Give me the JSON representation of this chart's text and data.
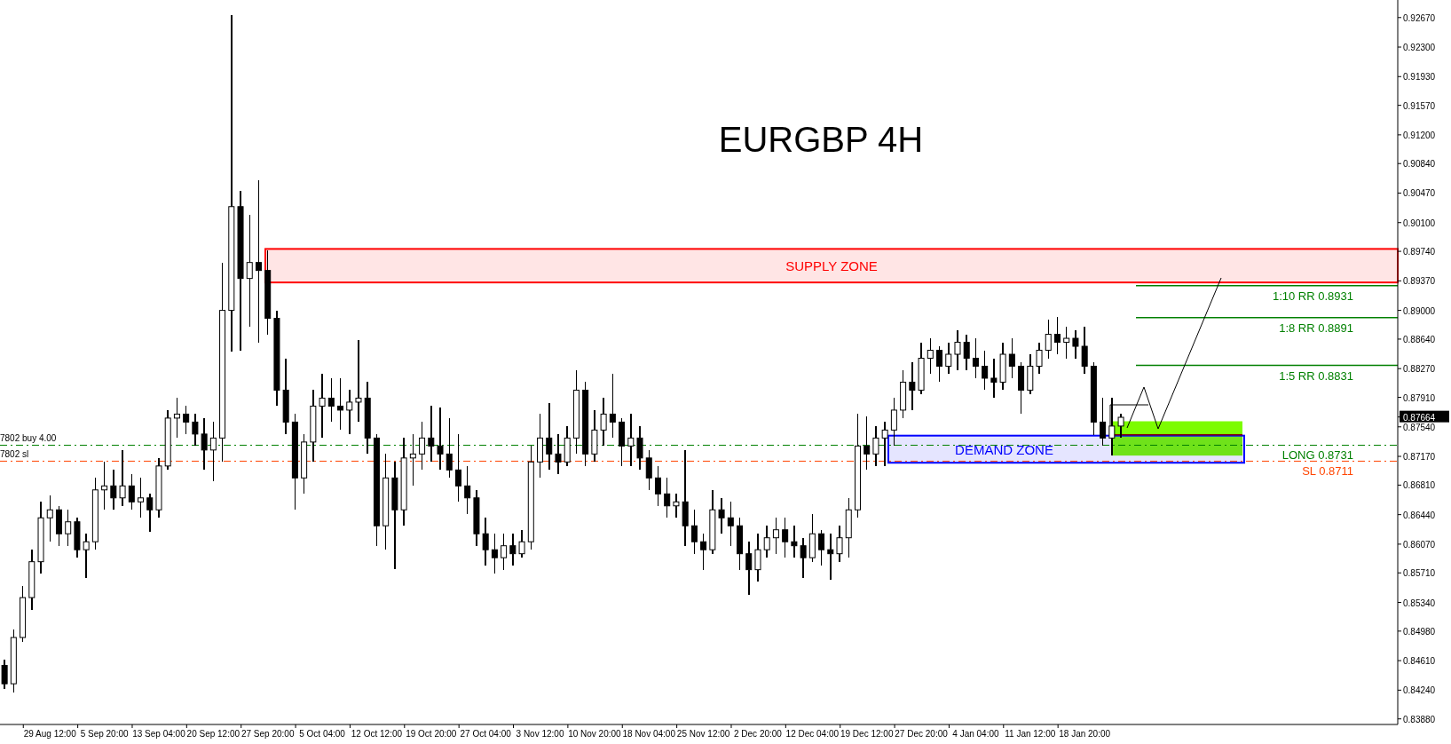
{
  "chart_data": {
    "type": "candlestick",
    "title": "EURGBP 4H",
    "color": "#000000",
    "categories": [
      null,
      null,
      null,
      null,
      null,
      "29 Aug 12:00",
      null,
      null,
      null,
      null,
      null,
      "5 Sep 20:00",
      null,
      null,
      null,
      null,
      null,
      "13 Sep 04:00",
      null,
      null,
      null,
      null,
      null,
      "20 Sep 12:00",
      null,
      null,
      null,
      null,
      null,
      "27 Sep 20:00",
      null,
      null,
      null,
      null,
      null,
      "5 Oct 04:00",
      null,
      null,
      null,
      null,
      null,
      "12 Oct 12:00",
      null,
      null,
      null,
      null,
      null,
      "19 Oct 20:00",
      null,
      null,
      null,
      null,
      null,
      "27 Oct 04:00",
      null,
      null,
      null,
      null,
      null,
      "3 Nov 12:00",
      null,
      null,
      null,
      null,
      null,
      "10 Nov 20:00",
      null,
      null,
      null,
      null,
      null,
      "18 Nov 04:00",
      null,
      null,
      null,
      null,
      null,
      "25 Nov 12:00",
      null,
      null,
      null,
      null,
      null,
      "2 Dec 20:00",
      null,
      null,
      null,
      null,
      null,
      "12 Dec 04:00",
      null,
      null,
      null,
      null,
      null,
      "19 Dec 12:00",
      null,
      null,
      null,
      null,
      null,
      "27 Dec 20:00",
      null,
      null,
      null,
      null,
      null,
      "4 Jan 04:00",
      null,
      null,
      null,
      null,
      null,
      "11 Jan 12:00",
      null,
      null,
      null,
      null,
      null,
      "18 Jan 20:00",
      null,
      null,
      null,
      null,
      null,
      null,
      null,
      null,
      null,
      null,
      null,
      null,
      null,
      null,
      null,
      null,
      null,
      null,
      null,
      null,
      null,
      null,
      null,
      null,
      null,
      null,
      null,
      null,
      null,
      null,
      null,
      null,
      null,
      null
    ],
    "ohlc": [
      [
        0.8455,
        0.8462,
        0.8425,
        0.8432
      ],
      [
        0.8432,
        0.85,
        0.8421,
        0.849
      ],
      [
        0.849,
        0.8555,
        0.8485,
        0.854
      ],
      [
        0.854,
        0.86,
        0.8525,
        0.8585
      ],
      [
        0.8585,
        0.866,
        0.857,
        0.864
      ],
      [
        0.864,
        0.8668,
        0.861,
        0.865
      ],
      [
        0.865,
        0.8655,
        0.8605,
        0.862
      ],
      [
        0.862,
        0.865,
        0.8605,
        0.8635
      ],
      [
        0.8635,
        0.864,
        0.859,
        0.86
      ],
      [
        0.86,
        0.862,
        0.8565,
        0.861
      ],
      [
        0.861,
        0.869,
        0.86,
        0.8675
      ],
      [
        0.8675,
        0.871,
        0.865,
        0.868
      ],
      [
        0.868,
        0.87,
        0.865,
        0.8665
      ],
      [
        0.8665,
        0.8725,
        0.8655,
        0.868
      ],
      [
        0.868,
        0.8695,
        0.865,
        0.866
      ],
      [
        0.866,
        0.869,
        0.864,
        0.8665
      ],
      [
        0.8665,
        0.867,
        0.8622,
        0.865
      ],
      [
        0.865,
        0.8715,
        0.864,
        0.8705
      ],
      [
        0.8705,
        0.8775,
        0.87,
        0.8765
      ],
      [
        0.8765,
        0.879,
        0.874,
        0.877
      ],
      [
        0.877,
        0.878,
        0.8745,
        0.876
      ],
      [
        0.876,
        0.877,
        0.873,
        0.8745
      ],
      [
        0.8745,
        0.8765,
        0.87,
        0.8725
      ],
      [
        0.8725,
        0.876,
        0.8686,
        0.874
      ],
      [
        0.874,
        0.896,
        0.871,
        0.89
      ],
      [
        0.89,
        0.927,
        0.8848,
        0.903
      ],
      [
        0.903,
        0.905,
        0.885,
        0.894
      ],
      [
        0.894,
        0.902,
        0.888,
        0.896
      ],
      [
        0.896,
        0.9063,
        0.886,
        0.895
      ],
      [
        0.895,
        0.8975,
        0.887,
        0.889
      ],
      [
        0.889,
        0.89,
        0.878,
        0.88
      ],
      [
        0.88,
        0.884,
        0.8745,
        0.876
      ],
      [
        0.876,
        0.877,
        0.865,
        0.869
      ],
      [
        0.869,
        0.8745,
        0.867,
        0.8735
      ],
      [
        0.8735,
        0.88,
        0.871,
        0.878
      ],
      [
        0.878,
        0.882,
        0.874,
        0.879
      ],
      [
        0.879,
        0.8815,
        0.876,
        0.878
      ],
      [
        0.878,
        0.8815,
        0.875,
        0.8775
      ],
      [
        0.8775,
        0.88,
        0.8745,
        0.8785
      ],
      [
        0.8785,
        0.8863,
        0.876,
        0.879
      ],
      [
        0.879,
        0.881,
        0.872,
        0.874
      ],
      [
        0.874,
        0.8745,
        0.8605,
        0.863
      ],
      [
        0.863,
        0.872,
        0.86,
        0.869
      ],
      [
        0.869,
        0.871,
        0.8576,
        0.865
      ],
      [
        0.865,
        0.874,
        0.863,
        0.8715
      ],
      [
        0.8715,
        0.8745,
        0.868,
        0.872
      ],
      [
        0.872,
        0.876,
        0.87,
        0.874
      ],
      [
        0.874,
        0.878,
        0.871,
        0.873
      ],
      [
        0.873,
        0.8778,
        0.87,
        0.872
      ],
      [
        0.872,
        0.8765,
        0.869,
        0.87
      ],
      [
        0.87,
        0.8745,
        0.866,
        0.868
      ],
      [
        0.868,
        0.8705,
        0.8645,
        0.8665
      ],
      [
        0.8665,
        0.8675,
        0.8605,
        0.862
      ],
      [
        0.862,
        0.864,
        0.858,
        0.86
      ],
      [
        0.86,
        0.862,
        0.857,
        0.859
      ],
      [
        0.859,
        0.862,
        0.8575,
        0.8605
      ],
      [
        0.8605,
        0.862,
        0.858,
        0.8595
      ],
      [
        0.8595,
        0.8625,
        0.859,
        0.861
      ],
      [
        0.861,
        0.873,
        0.86,
        0.871
      ],
      [
        0.871,
        0.877,
        0.869,
        0.874
      ],
      [
        0.874,
        0.8784,
        0.87,
        0.872
      ],
      [
        0.872,
        0.8745,
        0.8695,
        0.871
      ],
      [
        0.871,
        0.8755,
        0.8705,
        0.874
      ],
      [
        0.874,
        0.8825,
        0.872,
        0.88
      ],
      [
        0.88,
        0.881,
        0.8705,
        0.872
      ],
      [
        0.872,
        0.8775,
        0.871,
        0.875
      ],
      [
        0.875,
        0.879,
        0.873,
        0.877
      ],
      [
        0.877,
        0.882,
        0.874,
        0.876
      ],
      [
        0.876,
        0.8765,
        0.8705,
        0.873
      ],
      [
        0.873,
        0.877,
        0.8705,
        0.874
      ],
      [
        0.874,
        0.8755,
        0.87,
        0.8715
      ],
      [
        0.8715,
        0.8725,
        0.8675,
        0.869
      ],
      [
        0.869,
        0.8705,
        0.8655,
        0.867
      ],
      [
        0.867,
        0.869,
        0.864,
        0.8655
      ],
      [
        0.8655,
        0.867,
        0.864,
        0.866
      ],
      [
        0.866,
        0.8725,
        0.8605,
        0.863
      ],
      [
        0.863,
        0.865,
        0.8595,
        0.861
      ],
      [
        0.861,
        0.862,
        0.8575,
        0.86
      ],
      [
        0.86,
        0.8675,
        0.8595,
        0.865
      ],
      [
        0.865,
        0.8665,
        0.862,
        0.864
      ],
      [
        0.864,
        0.866,
        0.8605,
        0.863
      ],
      [
        0.863,
        0.864,
        0.8575,
        0.8595
      ],
      [
        0.8595,
        0.861,
        0.8543,
        0.8575
      ],
      [
        0.8575,
        0.862,
        0.856,
        0.86
      ],
      [
        0.86,
        0.863,
        0.859,
        0.8615
      ],
      [
        0.8615,
        0.864,
        0.8595,
        0.8625
      ],
      [
        0.8625,
        0.864,
        0.859,
        0.861
      ],
      [
        0.861,
        0.863,
        0.859,
        0.8605
      ],
      [
        0.8605,
        0.8615,
        0.8565,
        0.859
      ],
      [
        0.859,
        0.8645,
        0.8585,
        0.862
      ],
      [
        0.862,
        0.8625,
        0.858,
        0.86
      ],
      [
        0.86,
        0.862,
        0.8562,
        0.8595
      ],
      [
        0.8595,
        0.863,
        0.8585,
        0.8615
      ],
      [
        0.8615,
        0.8665,
        0.859,
        0.865
      ],
      [
        0.865,
        0.877,
        0.864,
        0.873
      ],
      [
        0.873,
        0.8767,
        0.87,
        0.872
      ],
      [
        0.872,
        0.8755,
        0.8705,
        0.874
      ],
      [
        0.874,
        0.876,
        0.8705,
        0.875
      ],
      [
        0.875,
        0.879,
        0.873,
        0.8775
      ],
      [
        0.8775,
        0.8825,
        0.8765,
        0.881
      ],
      [
        0.881,
        0.8835,
        0.8775,
        0.88
      ],
      [
        0.88,
        0.886,
        0.8795,
        0.884
      ],
      [
        0.884,
        0.8865,
        0.882,
        0.885
      ],
      [
        0.885,
        0.8855,
        0.881,
        0.883
      ],
      [
        0.883,
        0.886,
        0.882,
        0.8845
      ],
      [
        0.8845,
        0.8875,
        0.8825,
        0.886
      ],
      [
        0.886,
        0.887,
        0.8825,
        0.884
      ],
      [
        0.884,
        0.8865,
        0.8815,
        0.883
      ],
      [
        0.883,
        0.885,
        0.88,
        0.8815
      ],
      [
        0.8815,
        0.884,
        0.879,
        0.881
      ],
      [
        0.881,
        0.886,
        0.88,
        0.8845
      ],
      [
        0.8845,
        0.8865,
        0.8815,
        0.883
      ],
      [
        0.883,
        0.8835,
        0.877,
        0.88
      ],
      [
        0.88,
        0.8845,
        0.8795,
        0.883
      ],
      [
        0.883,
        0.886,
        0.882,
        0.885
      ],
      [
        0.885,
        0.8888,
        0.884,
        0.887
      ],
      [
        0.887,
        0.8892,
        0.8845,
        0.886
      ],
      [
        0.886,
        0.888,
        0.884,
        0.8865
      ],
      [
        0.8865,
        0.8875,
        0.884,
        0.8855
      ],
      [
        0.8855,
        0.888,
        0.882,
        0.883
      ],
      [
        0.883,
        0.8835,
        0.8744,
        0.876
      ],
      [
        0.876,
        0.879,
        0.873,
        0.874
      ],
      [
        0.874,
        0.879,
        0.8718,
        0.8755
      ],
      [
        0.8755,
        0.877,
        0.874,
        0.8766
      ],
      null,
      null,
      null,
      null,
      null,
      null,
      null,
      null,
      null,
      null,
      null,
      null,
      null,
      null,
      null,
      null,
      null,
      null,
      null,
      null,
      null,
      null,
      null,
      null,
      null,
      null,
      null,
      null,
      null,
      null
    ],
    "ylim": [
      0.8381,
      0.9289
    ],
    "yticks": [
      {
        "value": 0.9267,
        "label": "0.92670"
      },
      {
        "value": 0.923,
        "label": "0.92300"
      },
      {
        "value": 0.9193,
        "label": "0.91930"
      },
      {
        "value": 0.9157,
        "label": "0.91570"
      },
      {
        "value": 0.912,
        "label": "0.91200"
      },
      {
        "value": 0.9084,
        "label": "0.90840"
      },
      {
        "value": 0.9047,
        "label": "0.90470"
      },
      {
        "value": 0.901,
        "label": "0.90100"
      },
      {
        "value": 0.8974,
        "label": "0.89740"
      },
      {
        "value": 0.8937,
        "label": "0.89370"
      },
      {
        "value": 0.89,
        "label": "0.89000"
      },
      {
        "value": 0.8864,
        "label": "0.88640"
      },
      {
        "value": 0.8827,
        "label": "0.88270"
      },
      {
        "value": 0.8791,
        "label": "0.87910"
      },
      {
        "value": 0.8754,
        "label": "0.87540"
      },
      {
        "value": 0.8717,
        "label": "0.87170"
      },
      {
        "value": 0.8681,
        "label": "0.86810"
      },
      {
        "value": 0.8644,
        "label": "0.86440"
      },
      {
        "value": 0.8607,
        "label": "0.86070"
      },
      {
        "value": 0.8571,
        "label": "0.85710"
      },
      {
        "value": 0.8534,
        "label": "0.85340"
      },
      {
        "value": 0.8498,
        "label": "0.84980"
      },
      {
        "value": 0.8461,
        "label": "0.84610"
      },
      {
        "value": 0.8424,
        "label": "0.84240"
      },
      {
        "value": 0.8388,
        "label": "0.83880"
      },
      {
        "value": 0.87664,
        "label": "0.87664"
      }
    ],
    "ref_lines": [
      {
        "axis": "y",
        "value": 0.8931,
        "label": "1:10 RR 0.8931",
        "color": "#008000",
        "line_style": "solid"
      },
      {
        "axis": "y",
        "value": 0.8891,
        "label": "1:8 RR 0.8891",
        "color": "#008000",
        "line_style": "solid"
      },
      {
        "axis": "y",
        "value": 0.8831,
        "label": "1:5 RR 0.8831",
        "color": "#008000",
        "line_style": "solid"
      },
      {
        "axis": "y",
        "value": 0.8731,
        "label": "LONG 0.8731",
        "color": "#008000",
        "line_style": "dashed"
      },
      {
        "axis": "y",
        "value": 0.8711,
        "label": "SL 0.8711",
        "color": "#ff4500",
        "line_style": "dashed"
      },
      {
        "axis": "y",
        "value": 0.8744,
        "color": "#800000",
        "line_style": "solid"
      }
    ],
    "bands": [
      {
        "axis": "y",
        "from": 0.8935,
        "to": 0.8977,
        "label": "SUPPLY ZONE",
        "color": "#ff0000"
      },
      {
        "axis": "y",
        "from": 0.8709,
        "to": 0.8743,
        "label": "DEMAND ZONE",
        "color": "#0000ff"
      },
      {
        "axis": "y",
        "from": 0.8718,
        "to": 0.8761,
        "color": "#7cfc00"
      }
    ],
    "annotations": [
      {
        "text": "7802 buy 4.00",
        "y": 0.8731
      },
      {
        "text": "7802 sl",
        "y": 0.8711
      }
    ]
  }
}
